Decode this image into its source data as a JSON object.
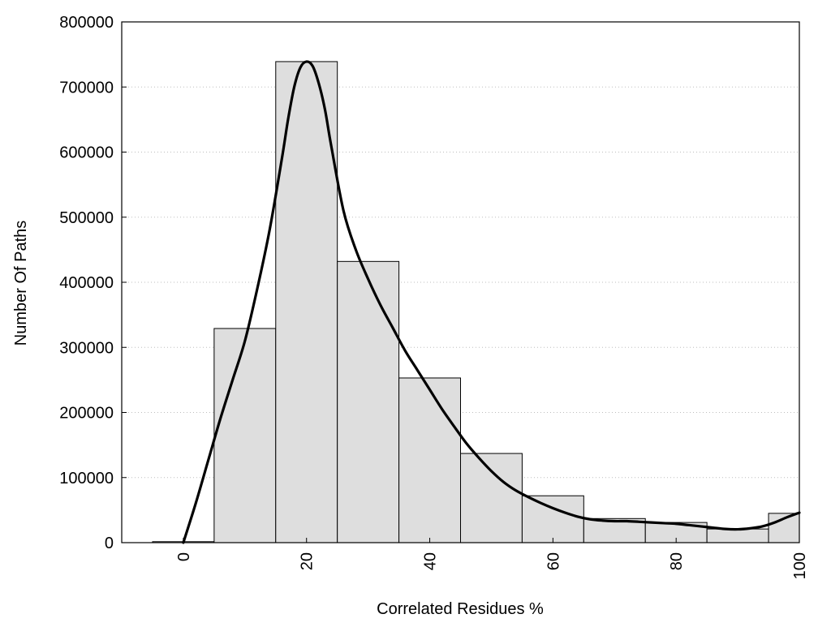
{
  "chart_data": {
    "type": "bar",
    "subtype": "histogram-with-density-curve",
    "title": "",
    "xlabel": "Correlated Residues %",
    "ylabel": "Number Of Paths",
    "xlim": [
      -10,
      100
    ],
    "ylim": [
      0,
      800000
    ],
    "x_ticks": [
      0,
      20,
      40,
      60,
      80,
      100
    ],
    "y_ticks": [
      0,
      100000,
      200000,
      300000,
      400000,
      500000,
      600000,
      700000,
      800000
    ],
    "x_tick_rotation": "vertical",
    "grid": "horizontal dotted",
    "bar_color": "#dedede",
    "bar_edge_color": "#000000",
    "curve_color": "#000000",
    "bins": [
      {
        "start": -5,
        "end": 5,
        "value": 1500
      },
      {
        "start": 5,
        "end": 15,
        "value": 329000
      },
      {
        "start": 15,
        "end": 25,
        "value": 739000
      },
      {
        "start": 25,
        "end": 35,
        "value": 432000
      },
      {
        "start": 35,
        "end": 45,
        "value": 253000
      },
      {
        "start": 45,
        "end": 55,
        "value": 137000
      },
      {
        "start": 55,
        "end": 65,
        "value": 72000
      },
      {
        "start": 65,
        "end": 75,
        "value": 37000
      },
      {
        "start": 75,
        "end": 85,
        "value": 31000
      },
      {
        "start": 85,
        "end": 95,
        "value": 21000
      },
      {
        "start": 95,
        "end": 100,
        "value": 45000
      }
    ],
    "curve": {
      "x": [
        0,
        2,
        4,
        6,
        8,
        10,
        12,
        14,
        16,
        17,
        18,
        19,
        20,
        21,
        22,
        23,
        24,
        26,
        28,
        30,
        32,
        34,
        36,
        38,
        40,
        42,
        44,
        46,
        48,
        50,
        52,
        54,
        56,
        58,
        60,
        62,
        64,
        66,
        68,
        70,
        72,
        74,
        76,
        78,
        80,
        82,
        84,
        86,
        88,
        90,
        92,
        94,
        96,
        98,
        100
      ],
      "y": [
        0,
        60000,
        125000,
        190000,
        250000,
        310000,
        390000,
        480000,
        590000,
        650000,
        700000,
        730000,
        739000,
        732000,
        705000,
        665000,
        610000,
        510000,
        450000,
        405000,
        365000,
        330000,
        295000,
        265000,
        235000,
        205000,
        178000,
        152000,
        130000,
        110000,
        93000,
        80000,
        70000,
        61000,
        53000,
        46000,
        40000,
        36000,
        34000,
        33000,
        33000,
        32000,
        31000,
        30000,
        29000,
        27000,
        25000,
        23000,
        21000,
        20500,
        22000,
        25000,
        31000,
        39000,
        46000
      ]
    }
  }
}
